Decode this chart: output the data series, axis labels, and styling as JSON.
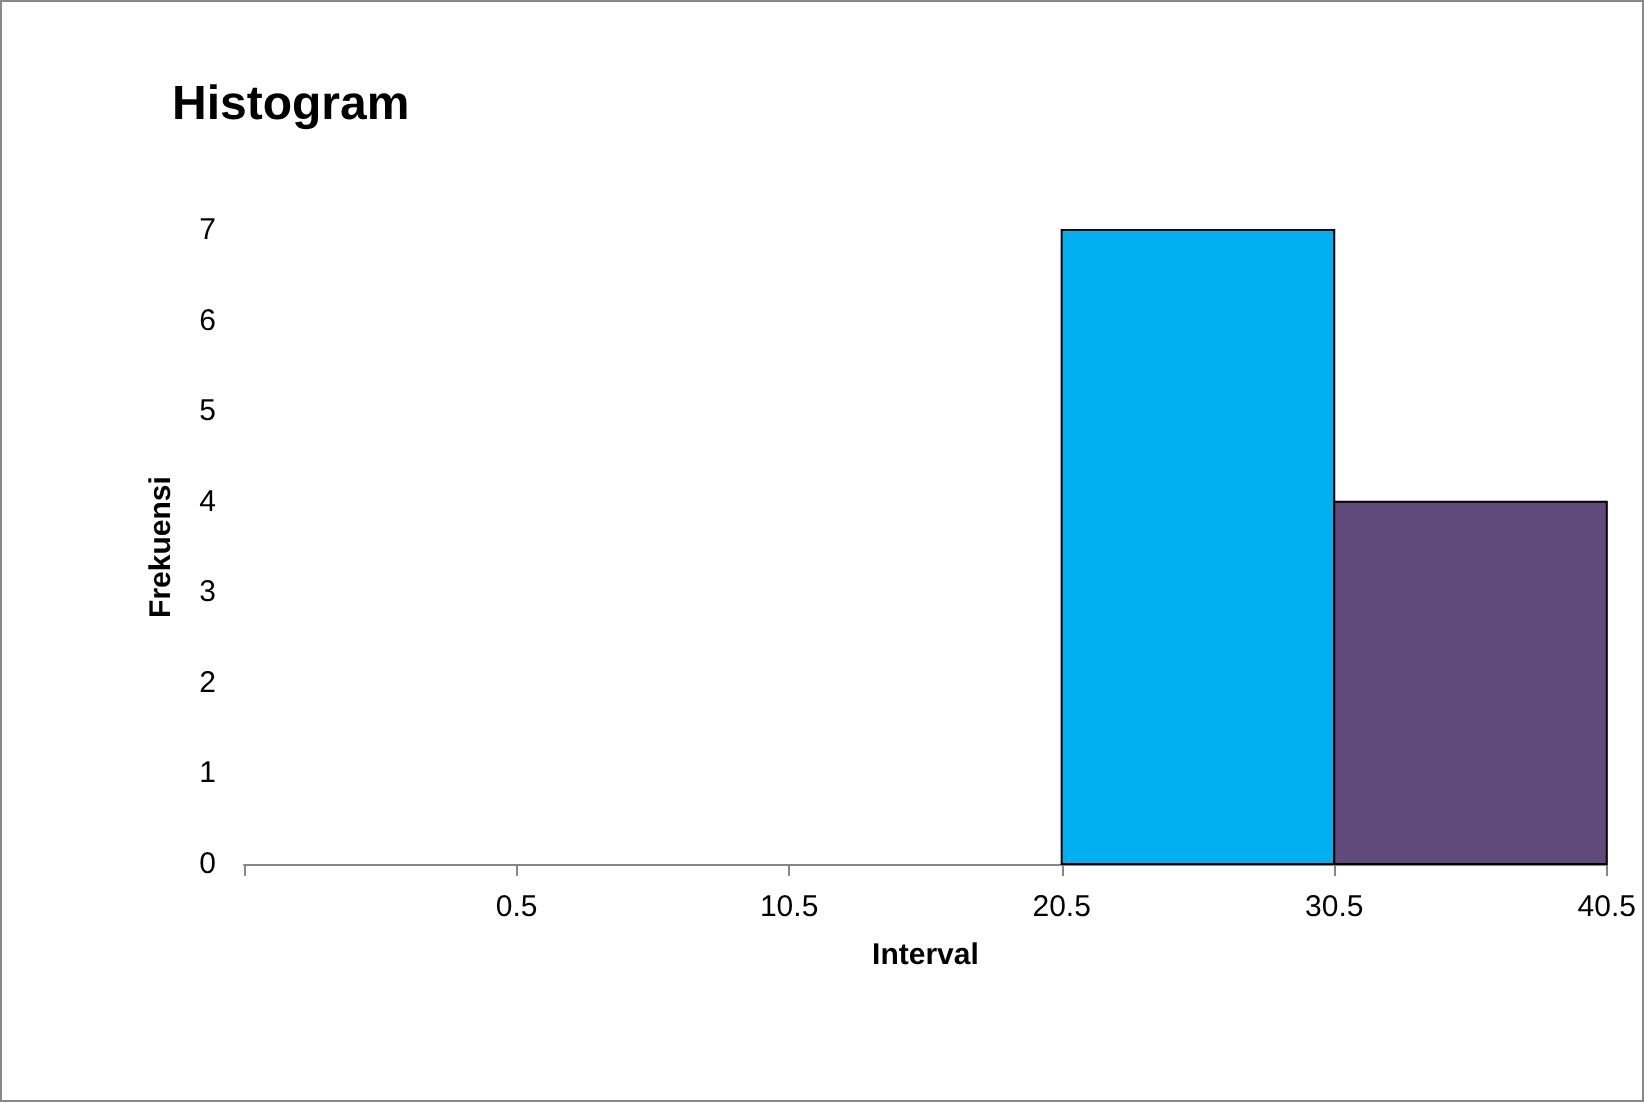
{
  "chart_data": {
    "type": "histogram",
    "title": "Histogram",
    "xlabel": "Interval",
    "ylabel": "Frekuensi",
    "bins": [
      20.5,
      30.5,
      40.5
    ],
    "values": [
      7,
      4
    ],
    "colors": [
      "#00b0f0",
      "#604a7b"
    ],
    "xlim": [
      -9.5,
      40.5
    ],
    "xticks": [
      {
        "value": -9.5,
        "label": null
      },
      0.5,
      10.5,
      20.5,
      30.5,
      40.5
    ],
    "ylim": [
      0,
      7
    ],
    "yticks": [
      0,
      1,
      2,
      3,
      4,
      5,
      6,
      7
    ],
    "grid": false
  }
}
